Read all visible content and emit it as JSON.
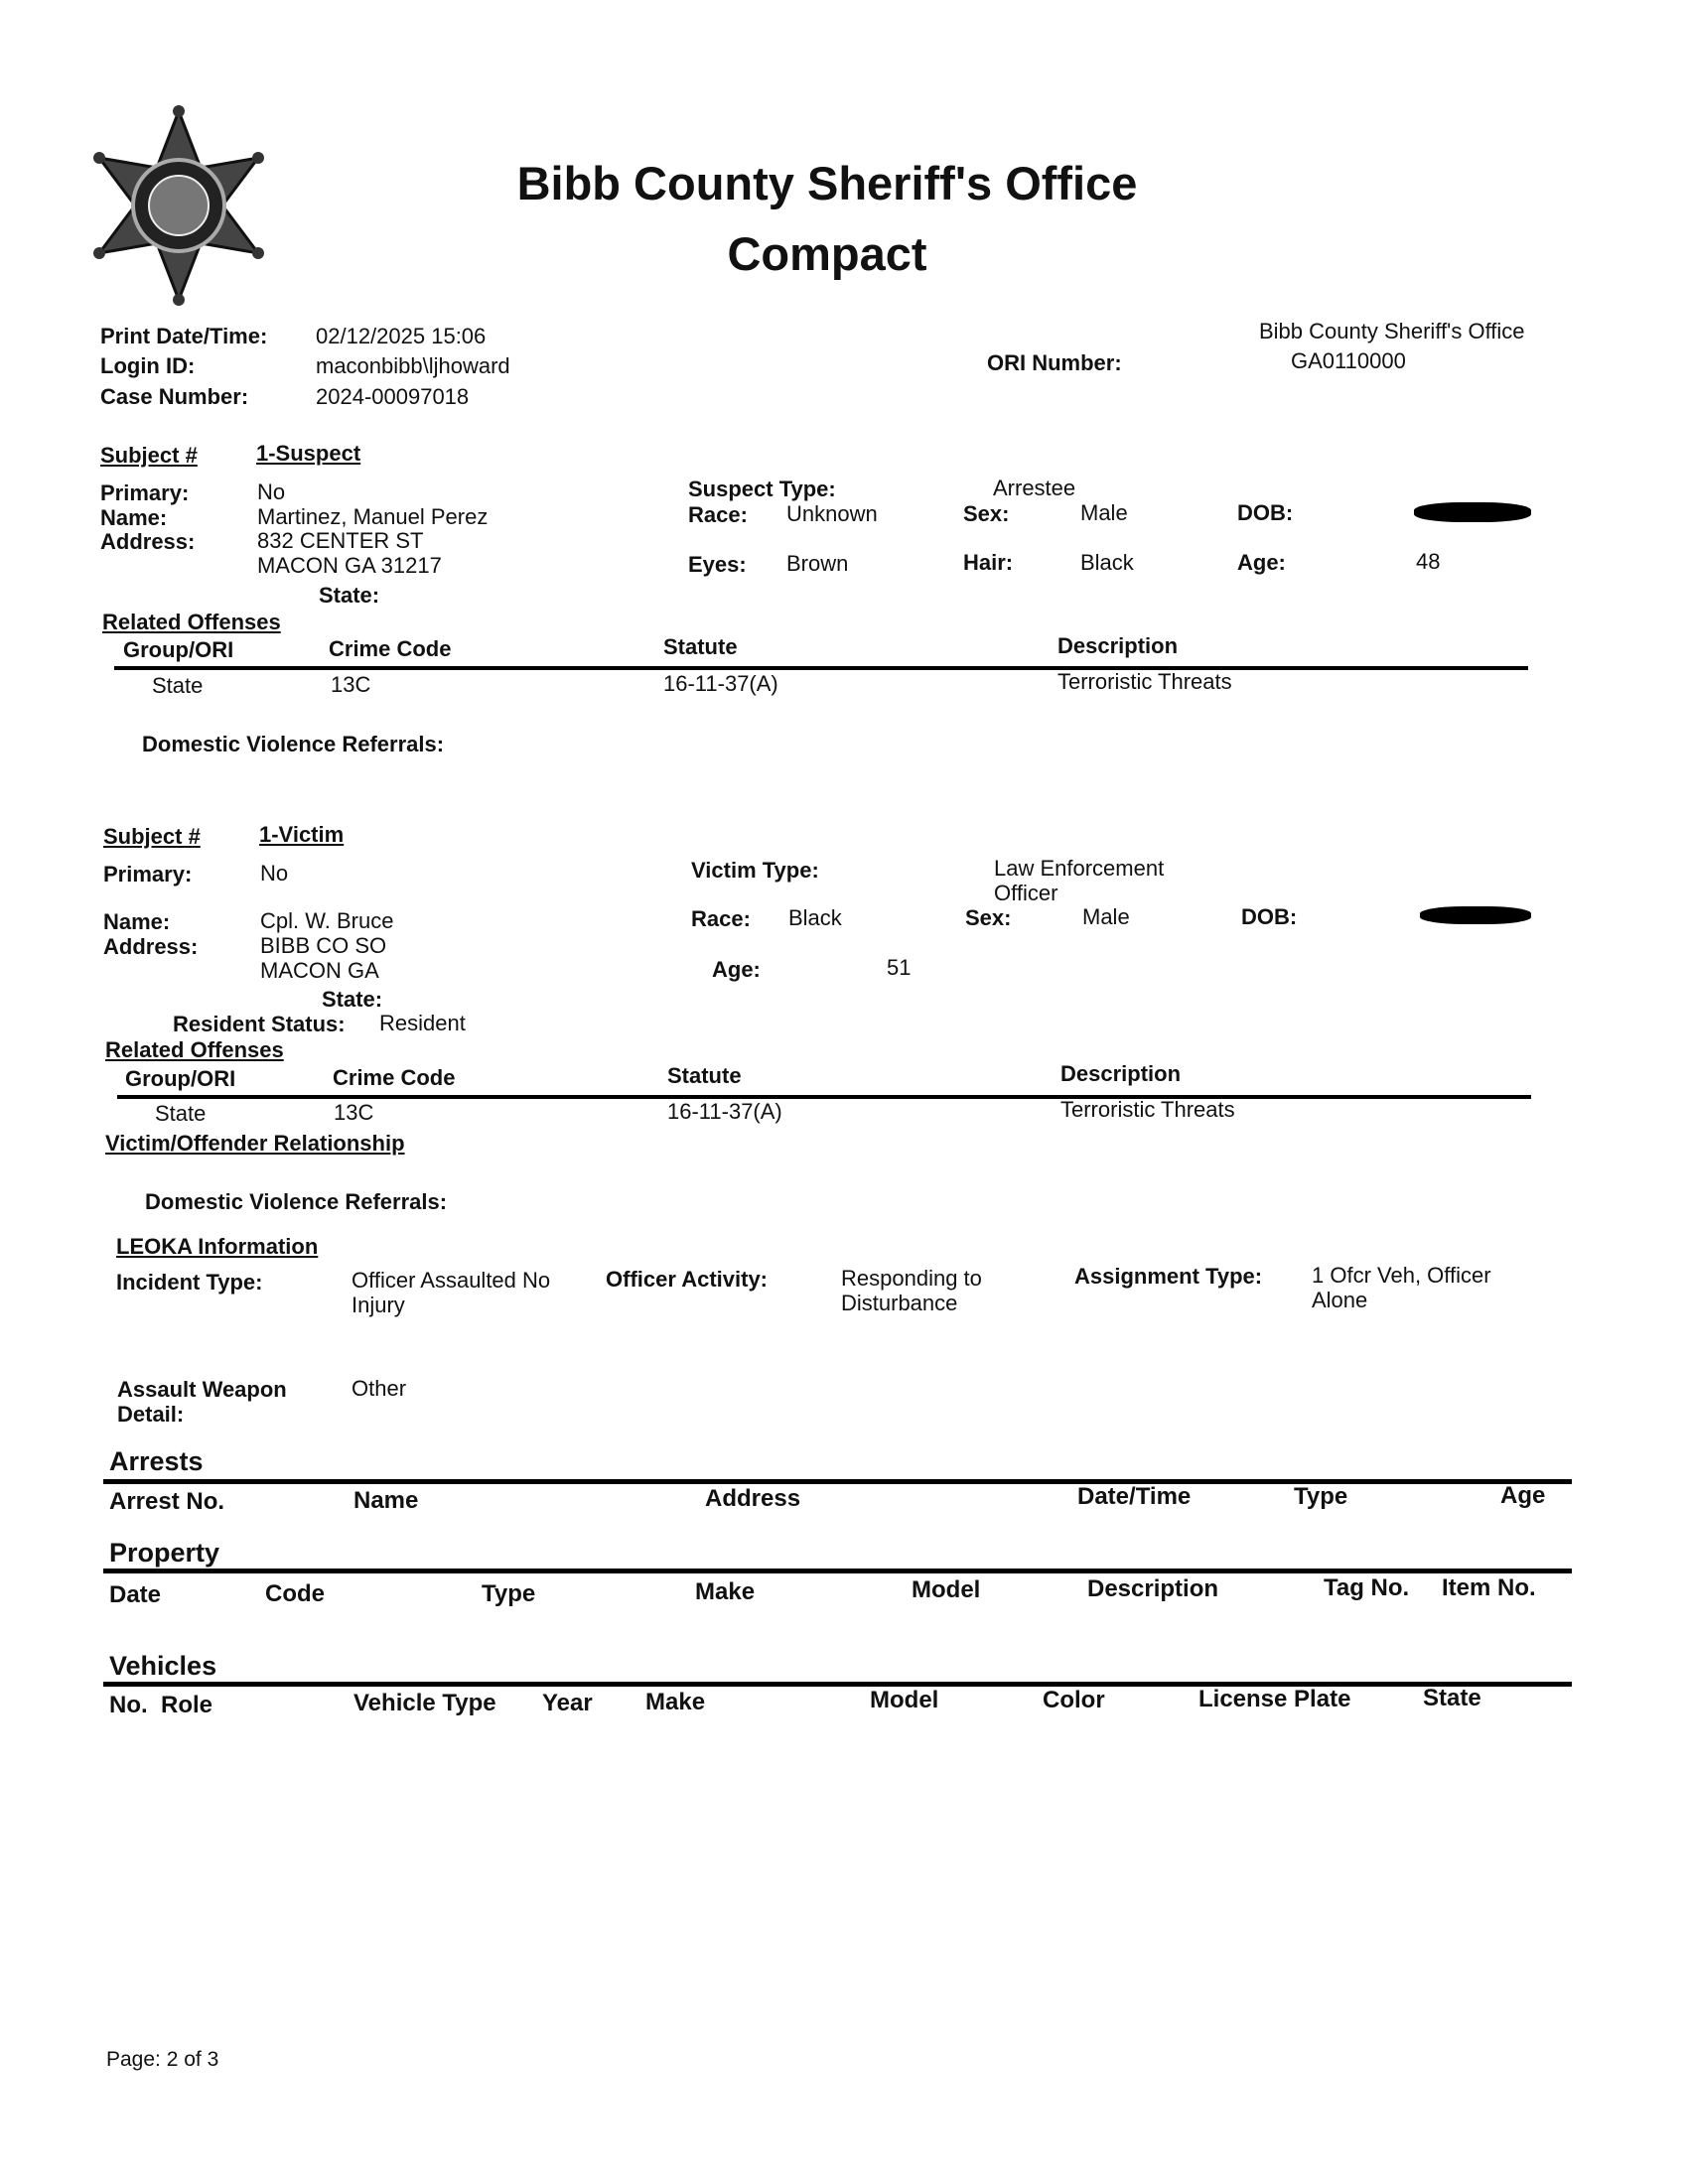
{
  "header": {
    "title": "Bibb County Sheriff's Office",
    "subtitle": "Compact",
    "print_datetime_label": "Print Date/Time:",
    "print_datetime": "02/12/2025 15:06",
    "login_label": "Login ID:",
    "login": "maconbibb\\ljhoward",
    "case_label": "Case Number:",
    "case_number": "2024-00097018",
    "ori_label": "ORI Number:",
    "agency": "Bibb County Sheriff's Office",
    "ori": "GA0110000"
  },
  "suspect": {
    "subject_label": "Subject #",
    "subject": "1-Suspect",
    "primary_label": "Primary:",
    "primary": "No",
    "name_label": "Name:",
    "name": "Martinez, Manuel Perez",
    "address_label": "Address:",
    "address1": "832 CENTER ST",
    "address2": "MACON GA 31217",
    "state_label": "State:",
    "type_label": "Suspect Type:",
    "type": "Arrestee",
    "race_label": "Race:",
    "race": "Unknown",
    "sex_label": "Sex:",
    "sex": "Male",
    "dob_label": "DOB:",
    "eyes_label": "Eyes:",
    "eyes": "Brown",
    "hair_label": "Hair:",
    "hair": "Black",
    "age_label": "Age:",
    "age": "48",
    "related_label": "Related Offenses",
    "dv_label": "Domestic Violence Referrals:"
  },
  "offense_columns": [
    "Group/ORI",
    "Crime Code",
    "Statute",
    "Description"
  ],
  "offense_row": [
    "State",
    "13C",
    "16-11-37(A)",
    "Terroristic Threats"
  ],
  "victim": {
    "subject_label": "Subject #",
    "subject": "1-Victim",
    "primary_label": "Primary:",
    "primary": "No",
    "type_label": "Victim Type:",
    "type1": "Law Enforcement",
    "type2": "Officer",
    "name_label": "Name:",
    "name": "Cpl. W. Bruce",
    "address_label": "Address:",
    "address1": "BIBB CO SO",
    "address2": "MACON GA",
    "race_label": "Race:",
    "race": "Black",
    "sex_label": "Sex:",
    "sex": "Male",
    "dob_label": "DOB:",
    "age_label": "Age:",
    "age": "51",
    "state_label": "State:",
    "resident_label": "Resident Status:",
    "resident": "Resident",
    "related_label": "Related Offenses",
    "relationship_label": "Victim/Offender Relationship",
    "dv_label": "Domestic Violence Referrals:"
  },
  "leoka": {
    "title": "LEOKA Information",
    "incident_label": "Incident Type:",
    "incident1": "Officer Assaulted No",
    "incident2": "Injury",
    "activity_label": "Officer Activity:",
    "activity1": "Responding to",
    "activity2": "Disturbance",
    "assignment_label": "Assignment Type:",
    "assignment1": "1 Ofcr Veh, Officer",
    "assignment2": "Alone",
    "weapon_label1": "Assault Weapon",
    "weapon_label2": "Detail:",
    "weapon": "Other"
  },
  "arrests": {
    "title": "Arrests",
    "columns": [
      "Arrest No.",
      "Name",
      "Address",
      "Date/Time",
      "Type",
      "Age"
    ]
  },
  "property": {
    "title": "Property",
    "columns": [
      "Date",
      "Code",
      "Type",
      "Make",
      "Model",
      "Description",
      "Tag No.",
      "Item No."
    ]
  },
  "vehicles": {
    "title": "Vehicles",
    "columns": [
      "No.  Role",
      "Vehicle Type",
      "Year",
      "Make",
      "Model",
      "Color",
      "License Plate",
      "State"
    ]
  },
  "footer": {
    "page": "Page: 2 of 3"
  }
}
